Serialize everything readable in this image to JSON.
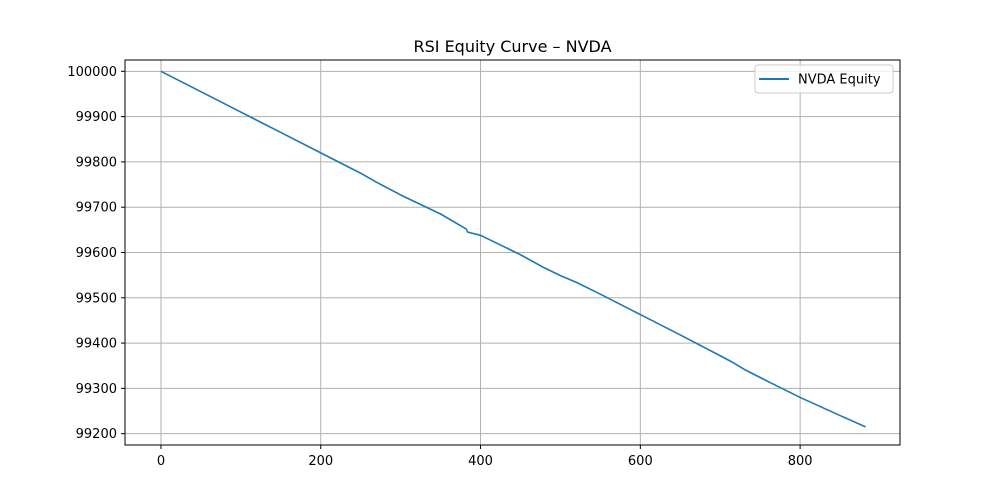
{
  "chart_data": {
    "type": "line",
    "title": "RSI Equity Curve – NVDA",
    "xlabel": "",
    "ylabel": "",
    "xlim": [
      -45,
      925
    ],
    "ylim": [
      99175,
      100025
    ],
    "x_ticks": [
      0,
      200,
      400,
      600,
      800
    ],
    "y_ticks": [
      99200,
      99300,
      99400,
      99500,
      99600,
      99700,
      99800,
      99900,
      100000
    ],
    "grid": true,
    "legend_position": "top-right",
    "series": [
      {
        "name": "NVDA Equity",
        "color": "#1f77b4",
        "x": [
          0,
          50,
          100,
          150,
          200,
          250,
          270,
          300,
          350,
          382,
          384,
          400,
          450,
          480,
          500,
          520,
          550,
          600,
          650,
          700,
          715,
          730,
          760,
          800,
          850,
          882
        ],
        "y": [
          100000,
          99955,
          99910,
          99865,
          99820,
          99775,
          99755,
          99727,
          99685,
          99652,
          99645,
          99638,
          99595,
          99566,
          99549,
          99534,
          99508,
          99463,
          99418,
          99372,
          99358,
          99342,
          99315,
          99280,
          99240,
          99215
        ]
      }
    ]
  }
}
